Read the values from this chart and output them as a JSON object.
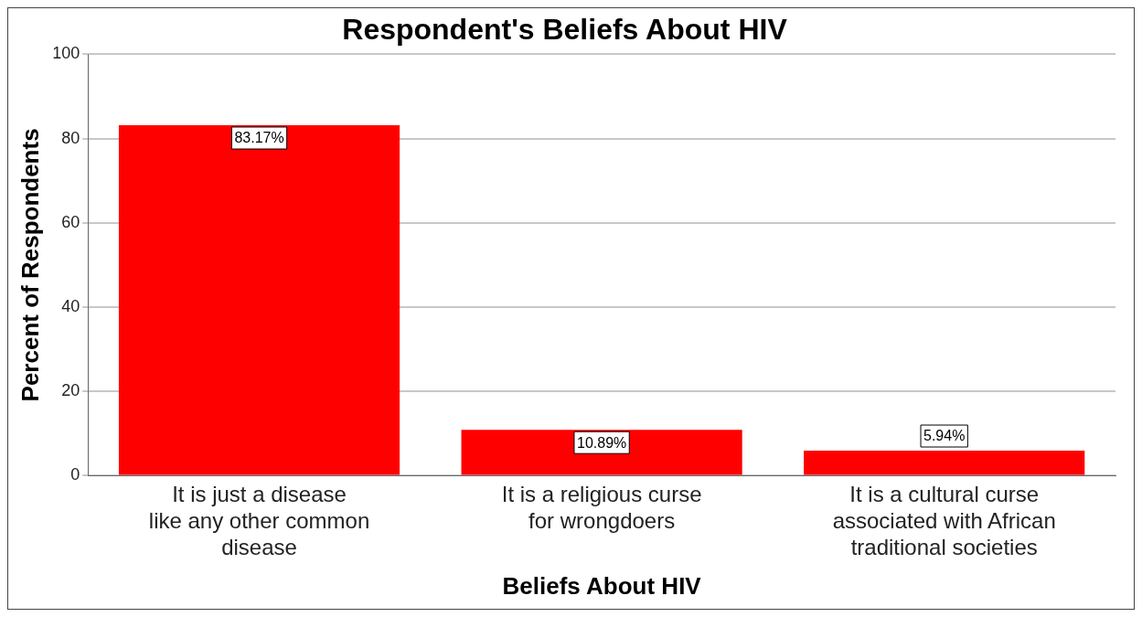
{
  "chart_data": {
    "type": "bar",
    "title": "Respondent's Beliefs About HIV",
    "xlabel": "Beliefs About HIV",
    "ylabel": "Percent of Respondents",
    "categories": [
      "It is just a disease like any other common disease",
      "It is a religious curse for wrongdoers",
      "It is a cultural curse associated with African traditional societies"
    ],
    "values": [
      83.17,
      10.89,
      5.94
    ],
    "value_labels": [
      "83.17%",
      "10.89%",
      "5.94%"
    ],
    "color": "#ff0000",
    "ylim": [
      0,
      100
    ],
    "yticks": [
      0,
      20,
      40,
      60,
      80,
      100
    ],
    "grid": "y",
    "legend": false
  }
}
